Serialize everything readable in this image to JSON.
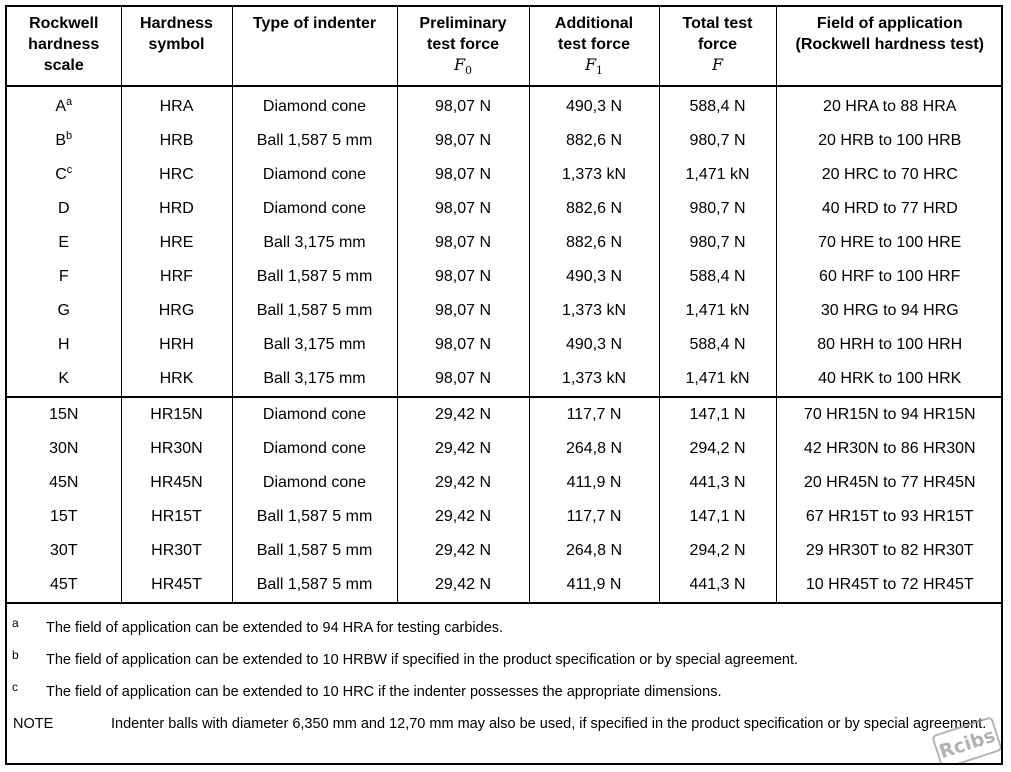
{
  "headers": {
    "scale": [
      "Rockwell",
      "hardness",
      "scale"
    ],
    "symbol": [
      "Hardness",
      "symbol"
    ],
    "indenter": [
      "Type of indenter"
    ],
    "preliminary": [
      "Preliminary",
      "test force"
    ],
    "preliminary_symbol": "F",
    "preliminary_sub": "0",
    "additional": [
      "Additional",
      "test force"
    ],
    "additional_symbol": "F",
    "additional_sub": "1",
    "total": [
      "Total test",
      "force"
    ],
    "total_symbol": "F",
    "field": [
      "Field of application",
      "(Rockwell hardness test)"
    ]
  },
  "rows": [
    {
      "scale": "A",
      "fn": "a",
      "symbol": "HRA",
      "indenter": "Diamond cone",
      "f0": "98,07 N",
      "f1": "490,3 N",
      "f": "588,4 N",
      "range": "20 HRA to 88 HRA"
    },
    {
      "scale": "B",
      "fn": "b",
      "symbol": "HRB",
      "indenter": "Ball 1,587 5 mm",
      "f0": "98,07 N",
      "f1": "882,6 N",
      "f": "980,7 N",
      "range": "20 HRB to 100 HRB"
    },
    {
      "scale": "C",
      "fn": "c",
      "symbol": "HRC",
      "indenter": "Diamond cone",
      "f0": "98,07 N",
      "f1": "1,373 kN",
      "f": "1,471 kN",
      "range": "20 HRC to 70 HRC"
    },
    {
      "scale": "D",
      "fn": "",
      "symbol": "HRD",
      "indenter": "Diamond cone",
      "f0": "98,07 N",
      "f1": "882,6 N",
      "f": "980,7 N",
      "range": "40 HRD to 77 HRD"
    },
    {
      "scale": "E",
      "fn": "",
      "symbol": "HRE",
      "indenter": "Ball 3,175 mm",
      "f0": "98,07 N",
      "f1": "882,6 N",
      "f": "980,7 N",
      "range": "70 HRE to 100 HRE"
    },
    {
      "scale": "F",
      "fn": "",
      "symbol": "HRF",
      "indenter": "Ball 1,587 5 mm",
      "f0": "98,07 N",
      "f1": "490,3 N",
      "f": "588,4 N",
      "range": "60 HRF to 100 HRF"
    },
    {
      "scale": "G",
      "fn": "",
      "symbol": "HRG",
      "indenter": "Ball 1,587 5 mm",
      "f0": "98,07 N",
      "f1": "1,373 kN",
      "f": "1,471 kN",
      "range": "30 HRG to 94 HRG"
    },
    {
      "scale": "H",
      "fn": "",
      "symbol": "HRH",
      "indenter": "Ball 3,175 mm",
      "f0": "98,07 N",
      "f1": "490,3 N",
      "f": "588,4 N",
      "range": "80 HRH to 100 HRH"
    },
    {
      "scale": "K",
      "fn": "",
      "symbol": "HRK",
      "indenter": "Ball 3,175 mm",
      "f0": "98,07 N",
      "f1": "1,373 kN",
      "f": "1,471 kN",
      "range": "40 HRK to 100 HRK"
    },
    {
      "scale": "15N",
      "fn": "",
      "symbol": "HR15N",
      "indenter": "Diamond cone",
      "f0": "29,42 N",
      "f1": "117,7 N",
      "f": "147,1 N",
      "range": "70 HR15N to 94 HR15N"
    },
    {
      "scale": "30N",
      "fn": "",
      "symbol": "HR30N",
      "indenter": "Diamond cone",
      "f0": "29,42 N",
      "f1": "264,8 N",
      "f": "294,2 N",
      "range": "42 HR30N to 86 HR30N"
    },
    {
      "scale": "45N",
      "fn": "",
      "symbol": "HR45N",
      "indenter": "Diamond cone",
      "f0": "29,42 N",
      "f1": "411,9 N",
      "f": "441,3 N",
      "range": "20 HR45N to 77 HR45N"
    },
    {
      "scale": "15T",
      "fn": "",
      "symbol": "HR15T",
      "indenter": "Ball 1,587 5 mm",
      "f0": "29,42 N",
      "f1": "117,7 N",
      "f": "147,1 N",
      "range": "67 HR15T to 93 HR15T"
    },
    {
      "scale": "30T",
      "fn": "",
      "symbol": "HR30T",
      "indenter": "Ball 1,587 5 mm",
      "f0": "29,42 N",
      "f1": "264,8 N",
      "f": "294,2 N",
      "range": "29 HR30T to 82 HR30T"
    },
    {
      "scale": "45T",
      "fn": "",
      "symbol": "HR45T",
      "indenter": "Ball 1,587 5 mm",
      "f0": "29,42 N",
      "f1": "411,9 N",
      "f": "441,3 N",
      "range": "10 HR45T to 72 HR45T"
    }
  ],
  "footnotes": [
    {
      "mark": "a",
      "text": "The field of application can be extended to 94 HRA for testing carbides."
    },
    {
      "mark": "b",
      "text": "The field of application can be extended to 10 HRBW if specified in the product specification or by special agreement."
    },
    {
      "mark": "c",
      "text": "The field of application can be extended to 10 HRC if the indenter possesses the appropriate dimensions."
    }
  ],
  "note": {
    "label": "NOTE",
    "text": "Indenter balls with diameter 6,350 mm and 12,70 mm may also be used, if specified in the product specification or by special agreement."
  },
  "watermark": {
    "text": "Rcibs",
    "color": "#9a9a9a"
  }
}
